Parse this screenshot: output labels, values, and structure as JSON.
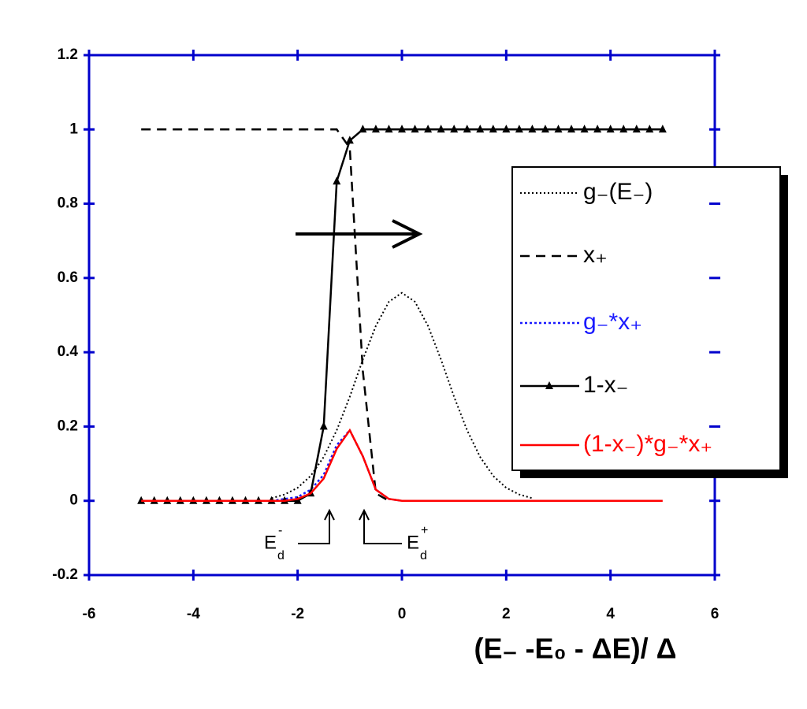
{
  "chart_data": {
    "type": "line",
    "x_label": "(E₋ -E₀ - ΔE)/ Δ",
    "xlim": [
      -6,
      6
    ],
    "ylim": [
      -0.2,
      1.2
    ],
    "xticks": [
      -6,
      -4,
      -2,
      0,
      2,
      4,
      6
    ],
    "yticks": [
      -0.2,
      0,
      0.2,
      0.4,
      0.6,
      0.8,
      1,
      1.2
    ],
    "axis_color": "#0000cc",
    "x": [
      -5,
      -4.75,
      -4.5,
      -4.25,
      -4,
      -3.75,
      -3.5,
      -3.25,
      -3,
      -2.75,
      -2.5,
      -2.25,
      -2,
      -1.75,
      -1.5,
      -1.25,
      -1,
      -0.75,
      -0.5,
      -0.25,
      0,
      0.25,
      0.5,
      0.75,
      1,
      1.25,
      1.5,
      1.75,
      2,
      2.25,
      2.5,
      2.75,
      3,
      3.25,
      3.5,
      3.75,
      4,
      4.25,
      4.5,
      4.75,
      5
    ],
    "series": [
      {
        "name": "g₋(E₋)",
        "color": "#000000",
        "dash": "2,3",
        "width": 2,
        "text_color": "#000000",
        "values": [
          null,
          null,
          null,
          null,
          null,
          null,
          null,
          null,
          null,
          null,
          0.007,
          0.017,
          0.035,
          0.067,
          0.118,
          0.19,
          0.28,
          0.38,
          0.471,
          0.536,
          0.56,
          0.536,
          0.471,
          0.38,
          0.28,
          0.19,
          0.118,
          0.067,
          0.035,
          0.017,
          0.007,
          null,
          null,
          null,
          null,
          null,
          null,
          null,
          null,
          null,
          null
        ]
      },
      {
        "name": "x₊",
        "color": "#000000",
        "dash": "12,8",
        "width": 2.5,
        "text_color": "#000000",
        "values": [
          1,
          1,
          1,
          1,
          1,
          1,
          1,
          1,
          1,
          1,
          1,
          1,
          1,
          1,
          1,
          1,
          0.95,
          0.35,
          0.02,
          0,
          null,
          null,
          null,
          null,
          null,
          null,
          null,
          null,
          null,
          null,
          null,
          null,
          null,
          null,
          null,
          null,
          null,
          null,
          null,
          null,
          null
        ]
      },
      {
        "name": "g₋*x₊",
        "color": "#1a1aff",
        "dash": "3,3",
        "width": 2.5,
        "text_color": "#1a1aff",
        "values": [
          null,
          null,
          null,
          null,
          null,
          null,
          null,
          null,
          null,
          null,
          0,
          0.005,
          0.01,
          0.03,
          0.07,
          0.15,
          0.19,
          0.12,
          0.03,
          0.005,
          0,
          null,
          null,
          null,
          null,
          null,
          null,
          null,
          null,
          null,
          null,
          null,
          null,
          null,
          null,
          null,
          null,
          null,
          null,
          null,
          null
        ]
      },
      {
        "name": "1-x₋",
        "color": "#000000",
        "dash": "none",
        "width": 2.5,
        "marker": "triangle",
        "text_color": "#000000",
        "values": [
          0,
          0,
          0,
          0,
          0,
          0,
          0,
          0,
          0,
          0,
          0,
          0,
          0,
          0.02,
          0.2,
          0.86,
          0.97,
          1,
          1,
          1,
          1,
          1,
          1,
          1,
          1,
          1,
          1,
          1,
          1,
          1,
          1,
          1,
          1,
          1,
          1,
          1,
          1,
          1,
          1,
          1,
          1
        ]
      },
      {
        "name": "(1-x₋)*g₋*x₊",
        "color": "#ff0000",
        "dash": "none",
        "width": 2.5,
        "text_color": "#ff0000",
        "values": [
          0,
          0,
          0,
          0,
          0,
          0,
          0,
          0,
          0,
          0,
          0,
          0,
          0.005,
          0.02,
          0.06,
          0.14,
          0.19,
          0.12,
          0.03,
          0.005,
          0,
          0,
          0,
          0,
          0,
          0,
          0,
          0,
          0,
          0,
          0,
          0,
          0,
          0,
          0,
          0,
          0,
          0,
          0,
          0,
          0
        ]
      }
    ],
    "annotations": [
      {
        "text": "E",
        "sub": "d",
        "sup": "-"
      },
      {
        "text": "E",
        "sub": "d",
        "sup": "+"
      }
    ]
  }
}
